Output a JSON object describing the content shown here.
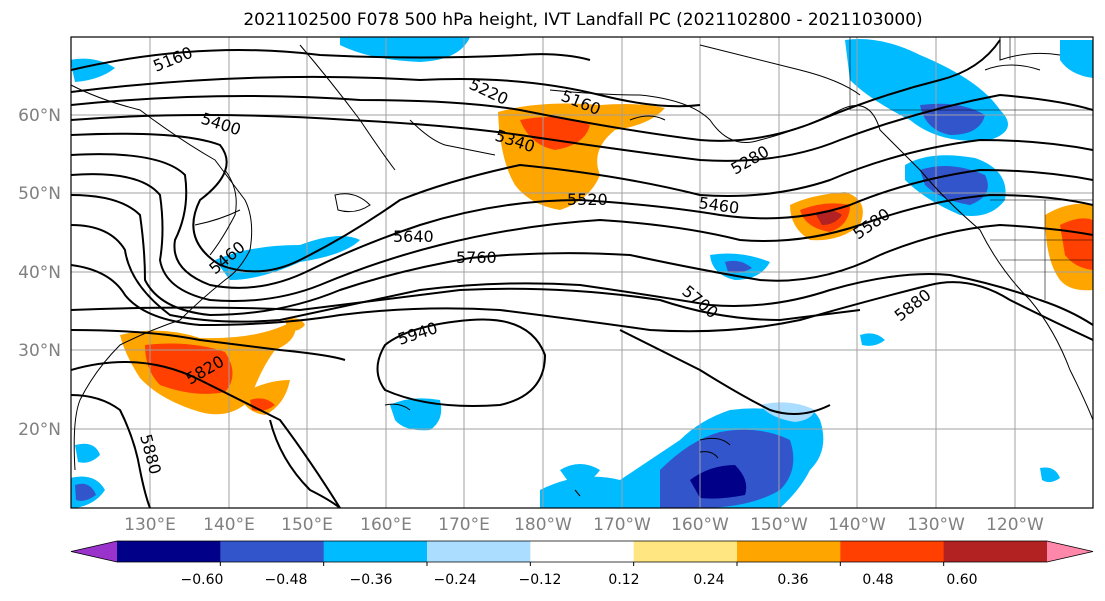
{
  "title": "2021102500 F078 500 hPa height, IVT Landfall PC (2021102800 - 2021103000)",
  "lat_labels": [
    "60°N",
    "50°N",
    "40°N",
    "30°N",
    "20°N"
  ],
  "lon_labels": [
    "130°E",
    "140°E",
    "150°E",
    "160°E",
    "170°E",
    "180°W",
    "170°W",
    "160°W",
    "150°W",
    "140°W",
    "130°W",
    "120°W"
  ],
  "colorbar": {
    "ticks": [
      "−0.60",
      "−0.48",
      "−0.36",
      "−0.24",
      "−0.12",
      "0.12",
      "0.24",
      "0.36",
      "0.48",
      "0.60"
    ],
    "colors": [
      "#9933cc",
      "#000088",
      "#3355cc",
      "#00bbff",
      "#aaddff",
      "#ffffff",
      "#ffe680",
      "#ffa500",
      "#ff4000",
      "#b22222",
      "#ff88aa"
    ]
  },
  "contour_labels": [
    "5160",
    "5220",
    "5160",
    "5400",
    "5340",
    "5280",
    "5520",
    "5460",
    "5580",
    "5640",
    "5460",
    "5760",
    "5700",
    "5880",
    "5940",
    "5820",
    "5880"
  ]
}
